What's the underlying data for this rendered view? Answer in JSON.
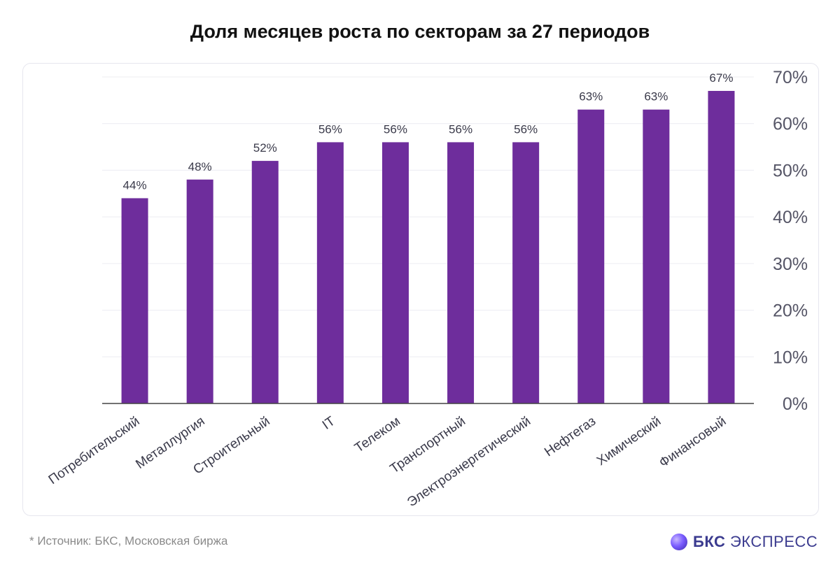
{
  "title": "Доля месяцев роста по секторам за 27 периодов",
  "footnote": "*  Источник: БКС, Московская биржа",
  "brand": {
    "name_bold": "БКС",
    "name_rest": "ЭКСПРЕСС"
  },
  "colors": {
    "bar": "#6e2d9c",
    "grid": "#ececf2",
    "axis": "#555566",
    "label": "#3a3a4a",
    "brand": "#3b3b8f"
  },
  "chart_data": {
    "type": "bar",
    "categories": [
      "Потребительский",
      "Металлургия",
      "Строительный",
      "IT",
      "Телеком",
      "Транспортный",
      "Электроэнергетический",
      "Нефтегаз",
      "Химический",
      "Финансовый"
    ],
    "values": [
      44,
      48,
      52,
      56,
      56,
      56,
      56,
      63,
      63,
      67
    ],
    "value_labels": [
      "44%",
      "48%",
      "52%",
      "56%",
      "56%",
      "56%",
      "56%",
      "63%",
      "63%",
      "67%"
    ],
    "ylim": [
      0,
      70
    ],
    "yticks": [
      0,
      10,
      20,
      30,
      40,
      50,
      60,
      70
    ],
    "ytick_labels": [
      "0%",
      "10%",
      "20%",
      "30%",
      "40%",
      "50%",
      "60%",
      "70%"
    ],
    "y_axis_side": "right",
    "grid": true,
    "xlabel": "",
    "ylabel": ""
  }
}
